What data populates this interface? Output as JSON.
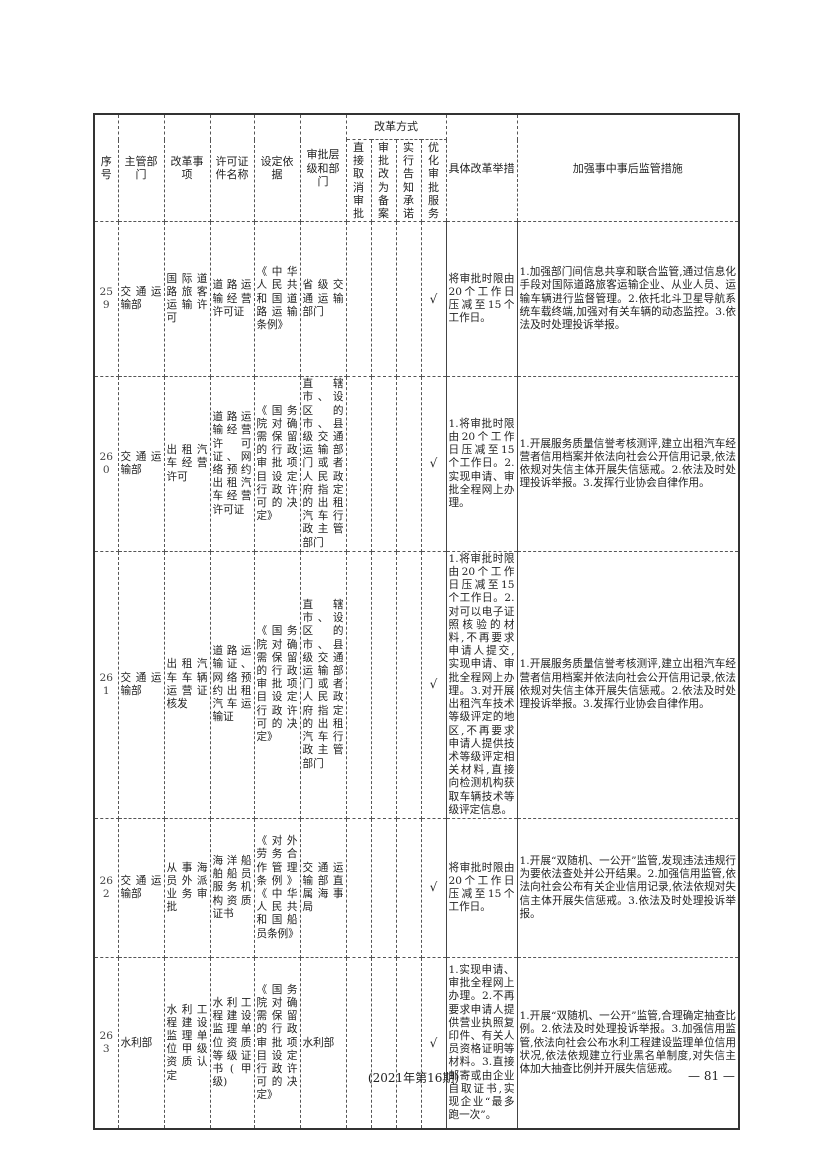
{
  "header": {
    "seq": "序号",
    "dept": "主管部门",
    "item": "改革事项",
    "license": "许可证件名称",
    "basis": "设定依据",
    "level": "审批层级和部门",
    "mode_group": "改革方式",
    "mode_cancel": "直接取消审批",
    "mode_filing": "审批改为备案",
    "mode_notice": "实行告知承诺",
    "mode_optimize": "优化审批服务",
    "measures": "具体改革举措",
    "supervision": "加强事中事后监管措施"
  },
  "rows": [
    {
      "seq": "259",
      "dept": "交通运输部",
      "item": "国际道路旅客运输许可",
      "license": "道路运输经营许可证",
      "basis": "《中华人民共和国道路运输条例》",
      "level": "省级交通运输部门",
      "cancel": "",
      "filing": "",
      "notice": "",
      "optimize": "√",
      "measures": "将审批时限由20个工作日压减至15个工作日。",
      "supervision": "1.加强部门间信息共享和联合监管,通过信息化手段对国际道路旅客运输企业、从业人员、运输车辆进行监督管理。2.依托北斗卫星导航系统车载终端,加强对有关车辆的动态监控。3.依法及时处理投诉举报。"
    },
    {
      "seq": "260",
      "dept": "交通运输部",
      "item": "出租汽车经营许可",
      "license": "道路运输经营许可证、网络预约出租汽车经营许可证",
      "basis": "《国务院对确需保留的行政审批项目设定行政许可的决定》",
      "level": "直辖市、设区的市、县级交通运输部门或者人民政府指定的出租汽车行政主管部门",
      "cancel": "",
      "filing": "",
      "notice": "",
      "optimize": "√",
      "measures": "1.将审批时限由20个工作日压减至15个工作日。2.实现申请、审批全程网上办理。",
      "supervision": "1.开展服务质量信誉考核测评,建立出租汽车经营者信用档案并依法向社会公开信用记录,依法依规对失信主体开展失信惩戒。2.依法及时处理投诉举报。3.发挥行业协会自律作用。"
    },
    {
      "seq": "261",
      "dept": "交通运输部",
      "item": "出租汽车车辆运营证核发",
      "license": "道路运输证、网络预约出租汽车运输证",
      "basis": "《国务院对确需保留的行政审批项目设定行政许可的决定》",
      "level": "直辖市、设区的市、县级交通运输部门或者人民政府指定的出租汽车行政主管部门",
      "cancel": "",
      "filing": "",
      "notice": "",
      "optimize": "√",
      "measures": "1.将审批时限由20个工作日压减至15个工作日。2.对可以电子证照核验的材料,不再要求申请人提交,实现申请、审批全程网上办理。3.对开展出租汽车技术等级评定的地区,不再要求申请人提供技术等级评定相关材料,直接向检测机构获取车辆技术等级评定信息。",
      "supervision": "1.开展服务质量信誉考核测评,建立出租汽车经营者信用档案并依法向社会公开信用记录,依法依规对失信主体开展失信惩戒。2.依法及时处理投诉举报。3.发挥行业协会自律作用。"
    },
    {
      "seq": "262",
      "dept": "交通运输部",
      "item": "从事海员外派业务审批",
      "license": "海洋船舶船员服务机构资质证书",
      "basis": "《对外劳务合作管理条例》《中华人民共和国船员条例》",
      "level": "交通运输部直属海事局",
      "cancel": "",
      "filing": "",
      "notice": "",
      "optimize": "√",
      "measures": "将审批时限由20个工作日压减至15个工作日。",
      "supervision": "1.开展“双随机、一公开”监管,发现违法违规行为要依法查处并公开结果。2.加强信用监管,依法向社会公布有关企业信用记录,依法依规对失信主体开展失信惩戒。3.依法及时处理投诉举报。"
    },
    {
      "seq": "263",
      "dept": "水利部",
      "item": "水利工程建设监理单位甲级资质认定",
      "license": "水利工程建设监理单位资质等级证书(甲级)",
      "basis": "《国务院对确需保留的行政审批项目设定行政许可的决定》",
      "level": "水利部",
      "cancel": "",
      "filing": "",
      "notice": "",
      "optimize": "√",
      "measures": "1.实现申请、审批全程网上办理。2.不再要求申请人提供营业执照复印件、有关人员资格证明等材料。3.直接邮寄或由企业自取证书,实现企业“最多跑一次”。",
      "supervision": "1.开展“双随机、一公开”监管,合理确定抽查比例。2.依法及时处理投诉举报。3.加强信用监管,依法向社会公布水利工程建设监理单位信用状况,依法依规建立行业黑名单制度,对失信主体加大抽查比例并开展失信惩戒。"
    }
  ],
  "footer": {
    "issue": "(2021年第16期)",
    "page": "— 81 —"
  }
}
